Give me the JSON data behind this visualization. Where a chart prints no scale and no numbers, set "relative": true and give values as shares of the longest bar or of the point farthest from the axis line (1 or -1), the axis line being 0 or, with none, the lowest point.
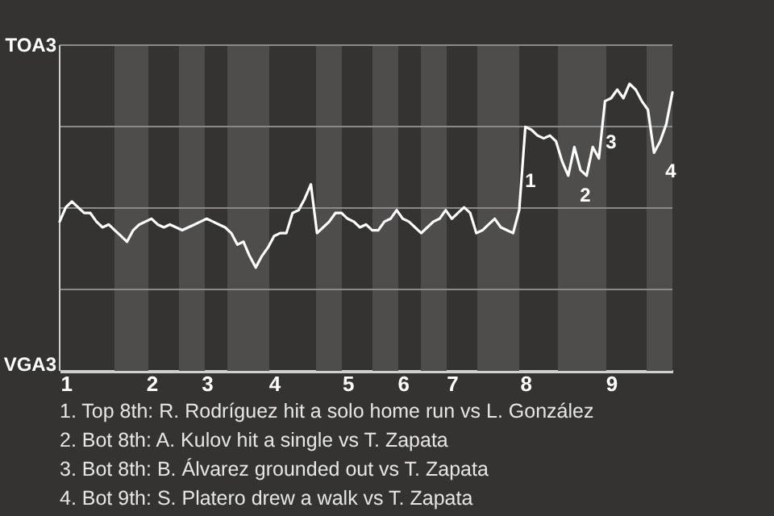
{
  "chart_data": {
    "type": "line",
    "categories": [
      null,
      "1",
      null,
      null,
      null,
      null,
      null,
      null,
      null,
      null,
      null,
      null,
      null,
      null,
      null,
      "2",
      null,
      null,
      null,
      null,
      null,
      null,
      null,
      null,
      "3",
      null,
      null,
      null,
      null,
      null,
      null,
      null,
      null,
      null,
      null,
      "4",
      null,
      null,
      null,
      null,
      null,
      null,
      null,
      null,
      null,
      null,
      null,
      "5",
      null,
      null,
      null,
      null,
      null,
      null,
      null,
      null,
      "6",
      null,
      null,
      null,
      null,
      null,
      null,
      null,
      "7",
      null,
      null,
      null,
      null,
      null,
      null,
      null,
      null,
      null,
      null,
      null,
      "8",
      null,
      null,
      null,
      null,
      null,
      null,
      null,
      null,
      null,
      null,
      null,
      null,
      null,
      "9",
      null,
      null,
      null,
      null,
      null,
      null,
      null,
      null,
      null,
      null
    ],
    "series": [
      {
        "color": "#ffffff",
        "values": [
          0.52,
          0.57,
          0.59,
          0.57,
          0.55,
          0.55,
          0.52,
          0.5,
          0.51,
          0.49,
          0.47,
          0.45,
          0.49,
          0.51,
          0.52,
          0.53,
          0.51,
          0.5,
          0.51,
          0.5,
          0.49,
          0.5,
          0.51,
          0.52,
          0.53,
          0.52,
          0.51,
          0.5,
          0.48,
          0.44,
          0.45,
          0.4,
          0.36,
          0.4,
          0.43,
          0.47,
          0.48,
          0.48,
          0.55,
          0.56,
          0.6,
          0.65,
          0.48,
          0.5,
          0.52,
          0.55,
          0.55,
          0.53,
          0.52,
          0.5,
          0.51,
          0.49,
          0.49,
          0.52,
          0.53,
          0.56,
          0.53,
          0.52,
          0.5,
          0.48,
          0.5,
          0.52,
          0.53,
          0.56,
          0.53,
          0.55,
          0.57,
          0.55,
          0.48,
          0.49,
          0.51,
          0.53,
          0.5,
          0.49,
          0.48,
          0.56,
          0.85,
          0.84,
          0.82,
          0.81,
          0.82,
          0.8,
          0.73,
          0.68,
          0.78,
          0.7,
          0.68,
          0.78,
          0.74,
          0.94,
          0.95,
          0.98,
          0.95,
          1,
          0.98,
          0.94,
          0.91,
          0.76,
          0.8,
          0.86,
          0.97
        ]
      }
    ],
    "relative": true,
    "grid": "y",
    "annotations": [
      "TOA3",
      "VGA3",
      "1",
      "2",
      "3",
      "4",
      "1. Top 8th: R. Rodríguez hit a solo home run vs L. González",
      "2. Bot 8th: A. Kulov hit a single vs T. Zapata",
      "3. Bot 8th: B. Álvarez grounded out vs T. Zapata",
      "4. Bot 9th: S. Platero drew a walk vs T. Zapata"
    ]
  }
}
